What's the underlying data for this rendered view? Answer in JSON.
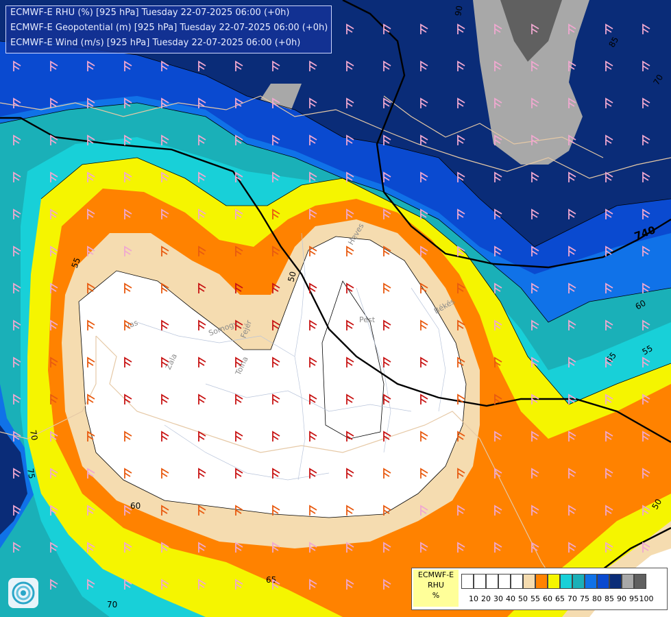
{
  "title_box": {
    "line1": "ECMWF-E RHU (%) [925 hPa] Tuesday 22-07-2025 06:00 (+0h)",
    "line2": "ECMWF-E Geopotential (m) [925 hPa] Tuesday 22-07-2025 06:00 (+0h)",
    "line3": "ECMWF-E Wind (m/s) [925 hPa] Tuesday 22-07-2025 06:00 (+0h)"
  },
  "legend": {
    "line1": "ECMWF-E",
    "line2": "RHU",
    "line3": "%",
    "levels": [
      "10",
      "20",
      "30",
      "40",
      "50",
      "55",
      "60",
      "65",
      "70",
      "75",
      "80",
      "85",
      "90",
      "95",
      "100"
    ],
    "colors": [
      "#ffffff",
      "#ffffff",
      "#ffffff",
      "#ffffff",
      "#ffffff",
      "#f5dcb0",
      "#ff8200",
      "#f5f500",
      "#18d0d8",
      "#1ab0b8",
      "#1072e8",
      "#0a4ad0",
      "#0a2c78",
      "#a8a8a8",
      "#606060"
    ]
  },
  "contour_labels": {
    "geo_740": "740",
    "rh_90": "90",
    "rh_85": "85",
    "rh_70_ne": "70",
    "rh_55_w": "55",
    "rh_50": "50",
    "rh_60_e": "60",
    "rh_55_e": "55",
    "rh_65_e": "65",
    "rh_70_w": "70",
    "rh_75_w": "75",
    "rh_60_sw": "60",
    "rh_65_s": "65",
    "rh_70_s": "70",
    "rh_50_se": "50"
  },
  "places": {
    "vas": "Vas",
    "zala": "Zala",
    "somogy": "Somogy",
    "fejer": "Fejér",
    "tolna": "Tolna",
    "pest": "Pest",
    "heves": "Heves",
    "bekes": "Békés"
  },
  "palette": {
    "white": "#ffffff",
    "tan": "#f5dcb0",
    "orange": "#ff8200",
    "yellow": "#f5f500",
    "cyan": "#18d0d8",
    "teal": "#1ab0b8",
    "blue": "#1072e8",
    "midblue": "#0a4ad0",
    "navy": "#0a2c78",
    "grey": "#a8a8a8"
  }
}
